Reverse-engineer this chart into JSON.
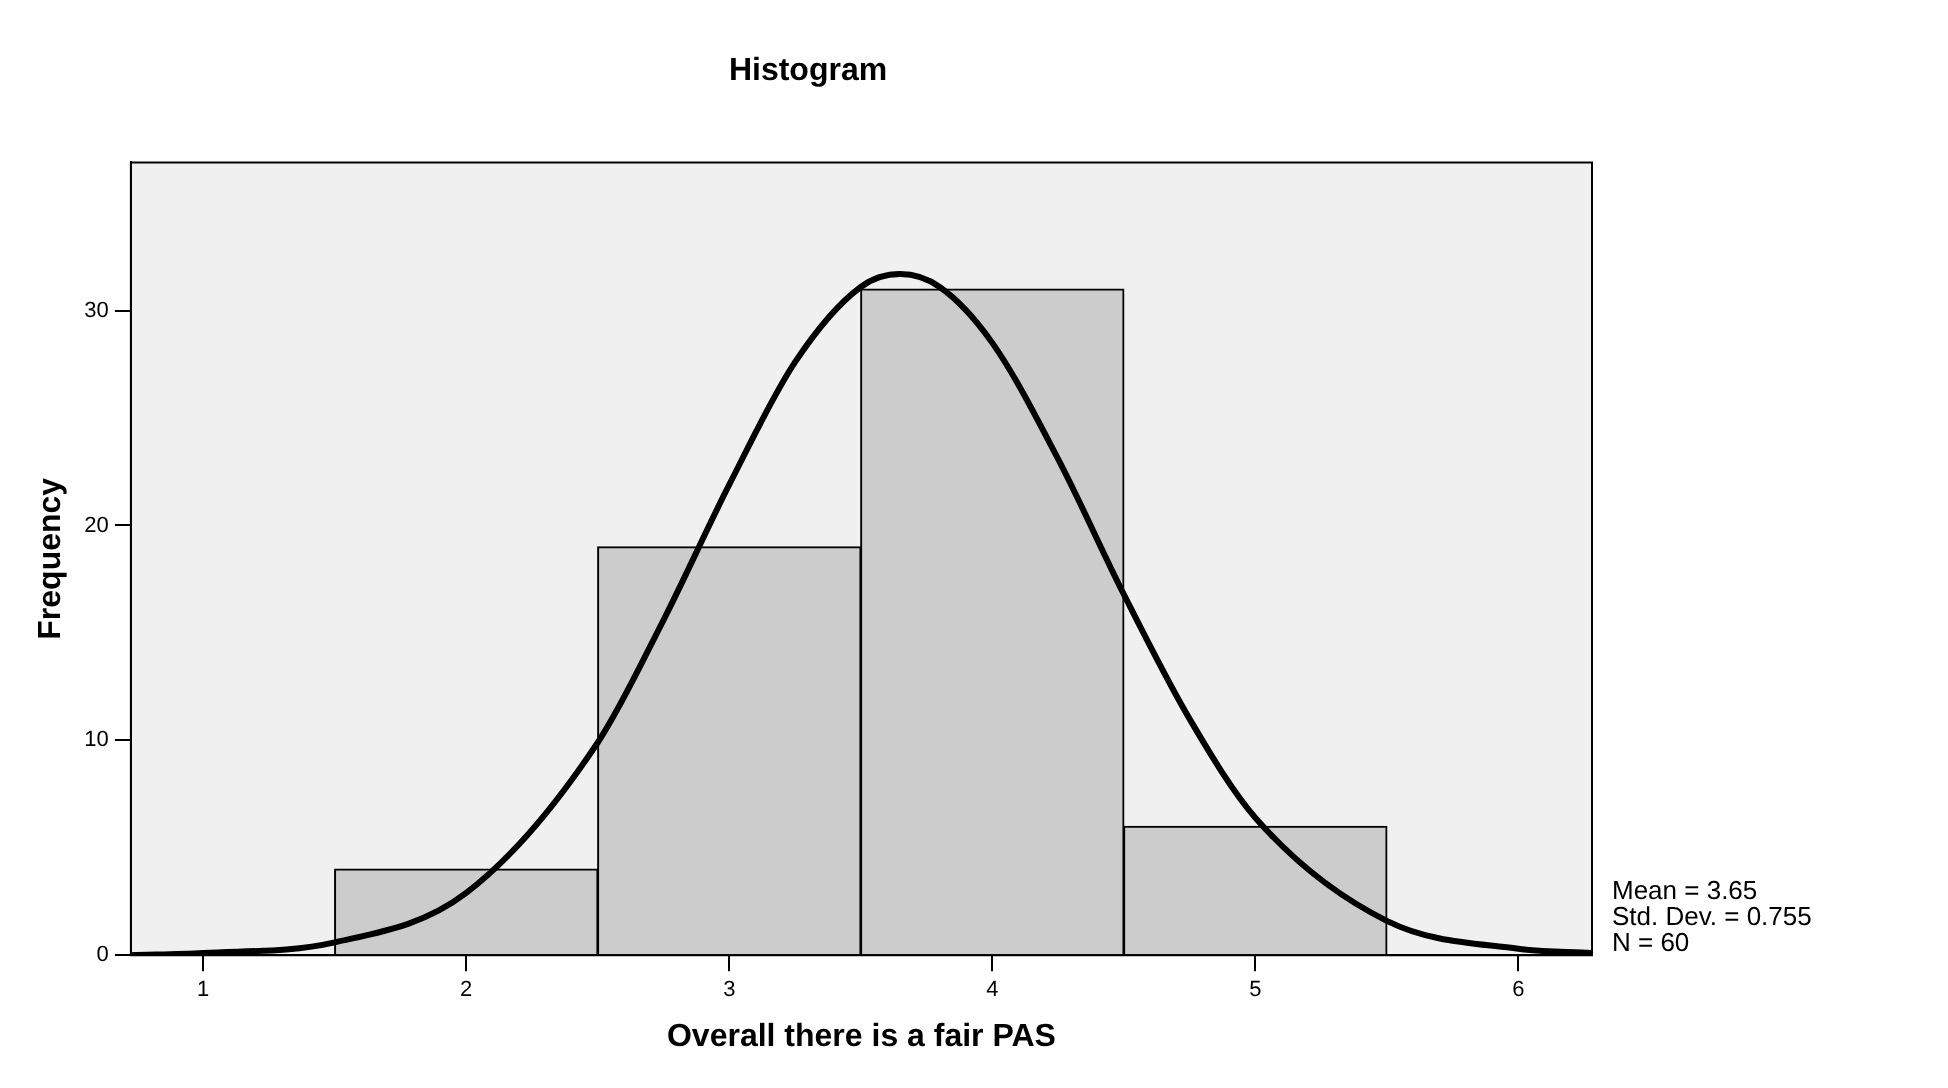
{
  "chart_data": {
    "type": "histogram",
    "title": "Histogram",
    "xlabel": "Overall there is a fair PAS",
    "ylabel": "Frequency",
    "bins": [
      1.5,
      2.5,
      3.5,
      4.5,
      5.5
    ],
    "values": [
      4,
      19,
      31,
      6
    ],
    "color": "#cccccc",
    "series": [
      {
        "type": "line",
        "color": "#000000",
        "x": [
          0.725,
          1.0,
          1.5,
          2.0,
          2.5,
          2.75,
          3.0,
          3.25,
          3.5,
          3.65,
          3.8,
          4.0,
          4.25,
          4.5,
          4.75,
          5.0,
          5.5,
          6.0,
          6.28
        ],
        "values": [
          0.0,
          0.1,
          0.6,
          2.9,
          9.9,
          15.6,
          21.9,
          27.6,
          31.1,
          31.7,
          31.1,
          28.5,
          23.1,
          16.8,
          11.0,
          6.4,
          1.6,
          0.3,
          0.1
        ]
      }
    ],
    "xlim": [
      0.725,
      6.28
    ],
    "xticks": [
      1,
      2,
      3,
      4,
      5,
      6
    ],
    "ylim": [
      0,
      36.9
    ],
    "yticks": [
      0,
      10,
      20,
      30
    ],
    "grid": false,
    "legend": false,
    "marker": "none",
    "line_style": "solid",
    "annotations": [
      "Mean = 3.65",
      "Std. Dev. = 0.755",
      "N = 60"
    ]
  }
}
